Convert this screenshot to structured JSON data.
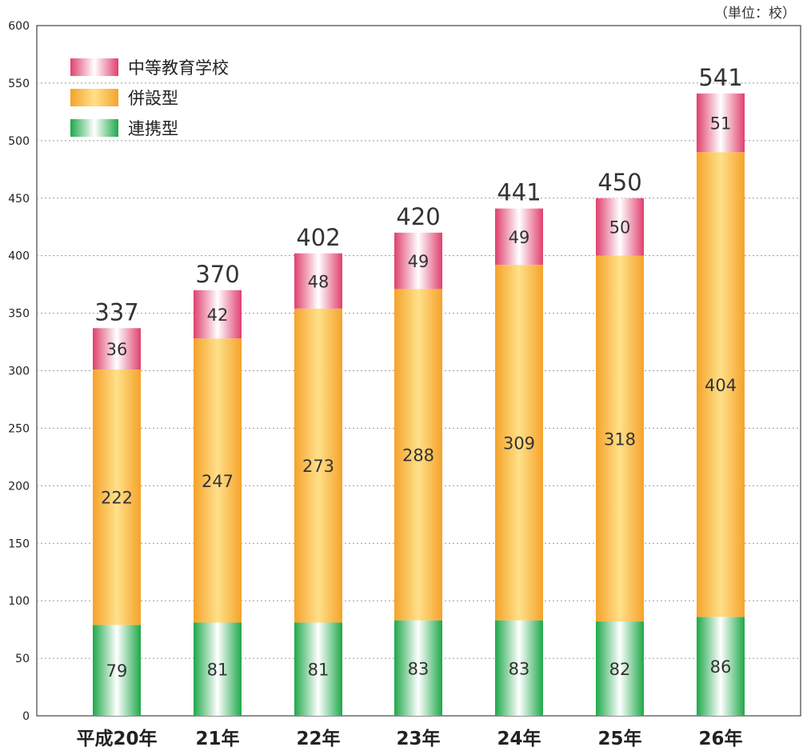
{
  "unit_note": "（単位：校）",
  "colors": {
    "chuto": "#e0406e",
    "heisetsu": "#f5a32a",
    "renkei": "#1fa84a",
    "grid": "#999999",
    "axis": "#444444"
  },
  "chart_data": {
    "type": "bar",
    "stacked": true,
    "title": "",
    "xlabel": "",
    "ylabel": "",
    "ylim": [
      0,
      600
    ],
    "yticks": [
      "0",
      "50",
      "100",
      "150",
      "200",
      "250",
      "300",
      "350",
      "400",
      "450",
      "500",
      "550",
      "600"
    ],
    "categories": [
      "平成20年",
      "21年",
      "22年",
      "23年",
      "24年",
      "25年",
      "26年"
    ],
    "series": [
      {
        "name": "連携型",
        "key": "renkei",
        "values": [
          79,
          81,
          81,
          83,
          83,
          82,
          86
        ]
      },
      {
        "name": "併設型",
        "key": "heisetsu",
        "values": [
          222,
          247,
          273,
          288,
          309,
          318,
          404
        ]
      },
      {
        "name": "中等教育学校",
        "key": "chuto",
        "values": [
          36,
          42,
          48,
          49,
          49,
          50,
          51
        ]
      }
    ],
    "totals": [
      "337",
      "370",
      "402",
      "420",
      "441",
      "450",
      "541"
    ],
    "legend": {
      "placement": "top-left",
      "order": [
        "中等教育学校",
        "併設型",
        "連携型"
      ]
    },
    "grid": true
  }
}
